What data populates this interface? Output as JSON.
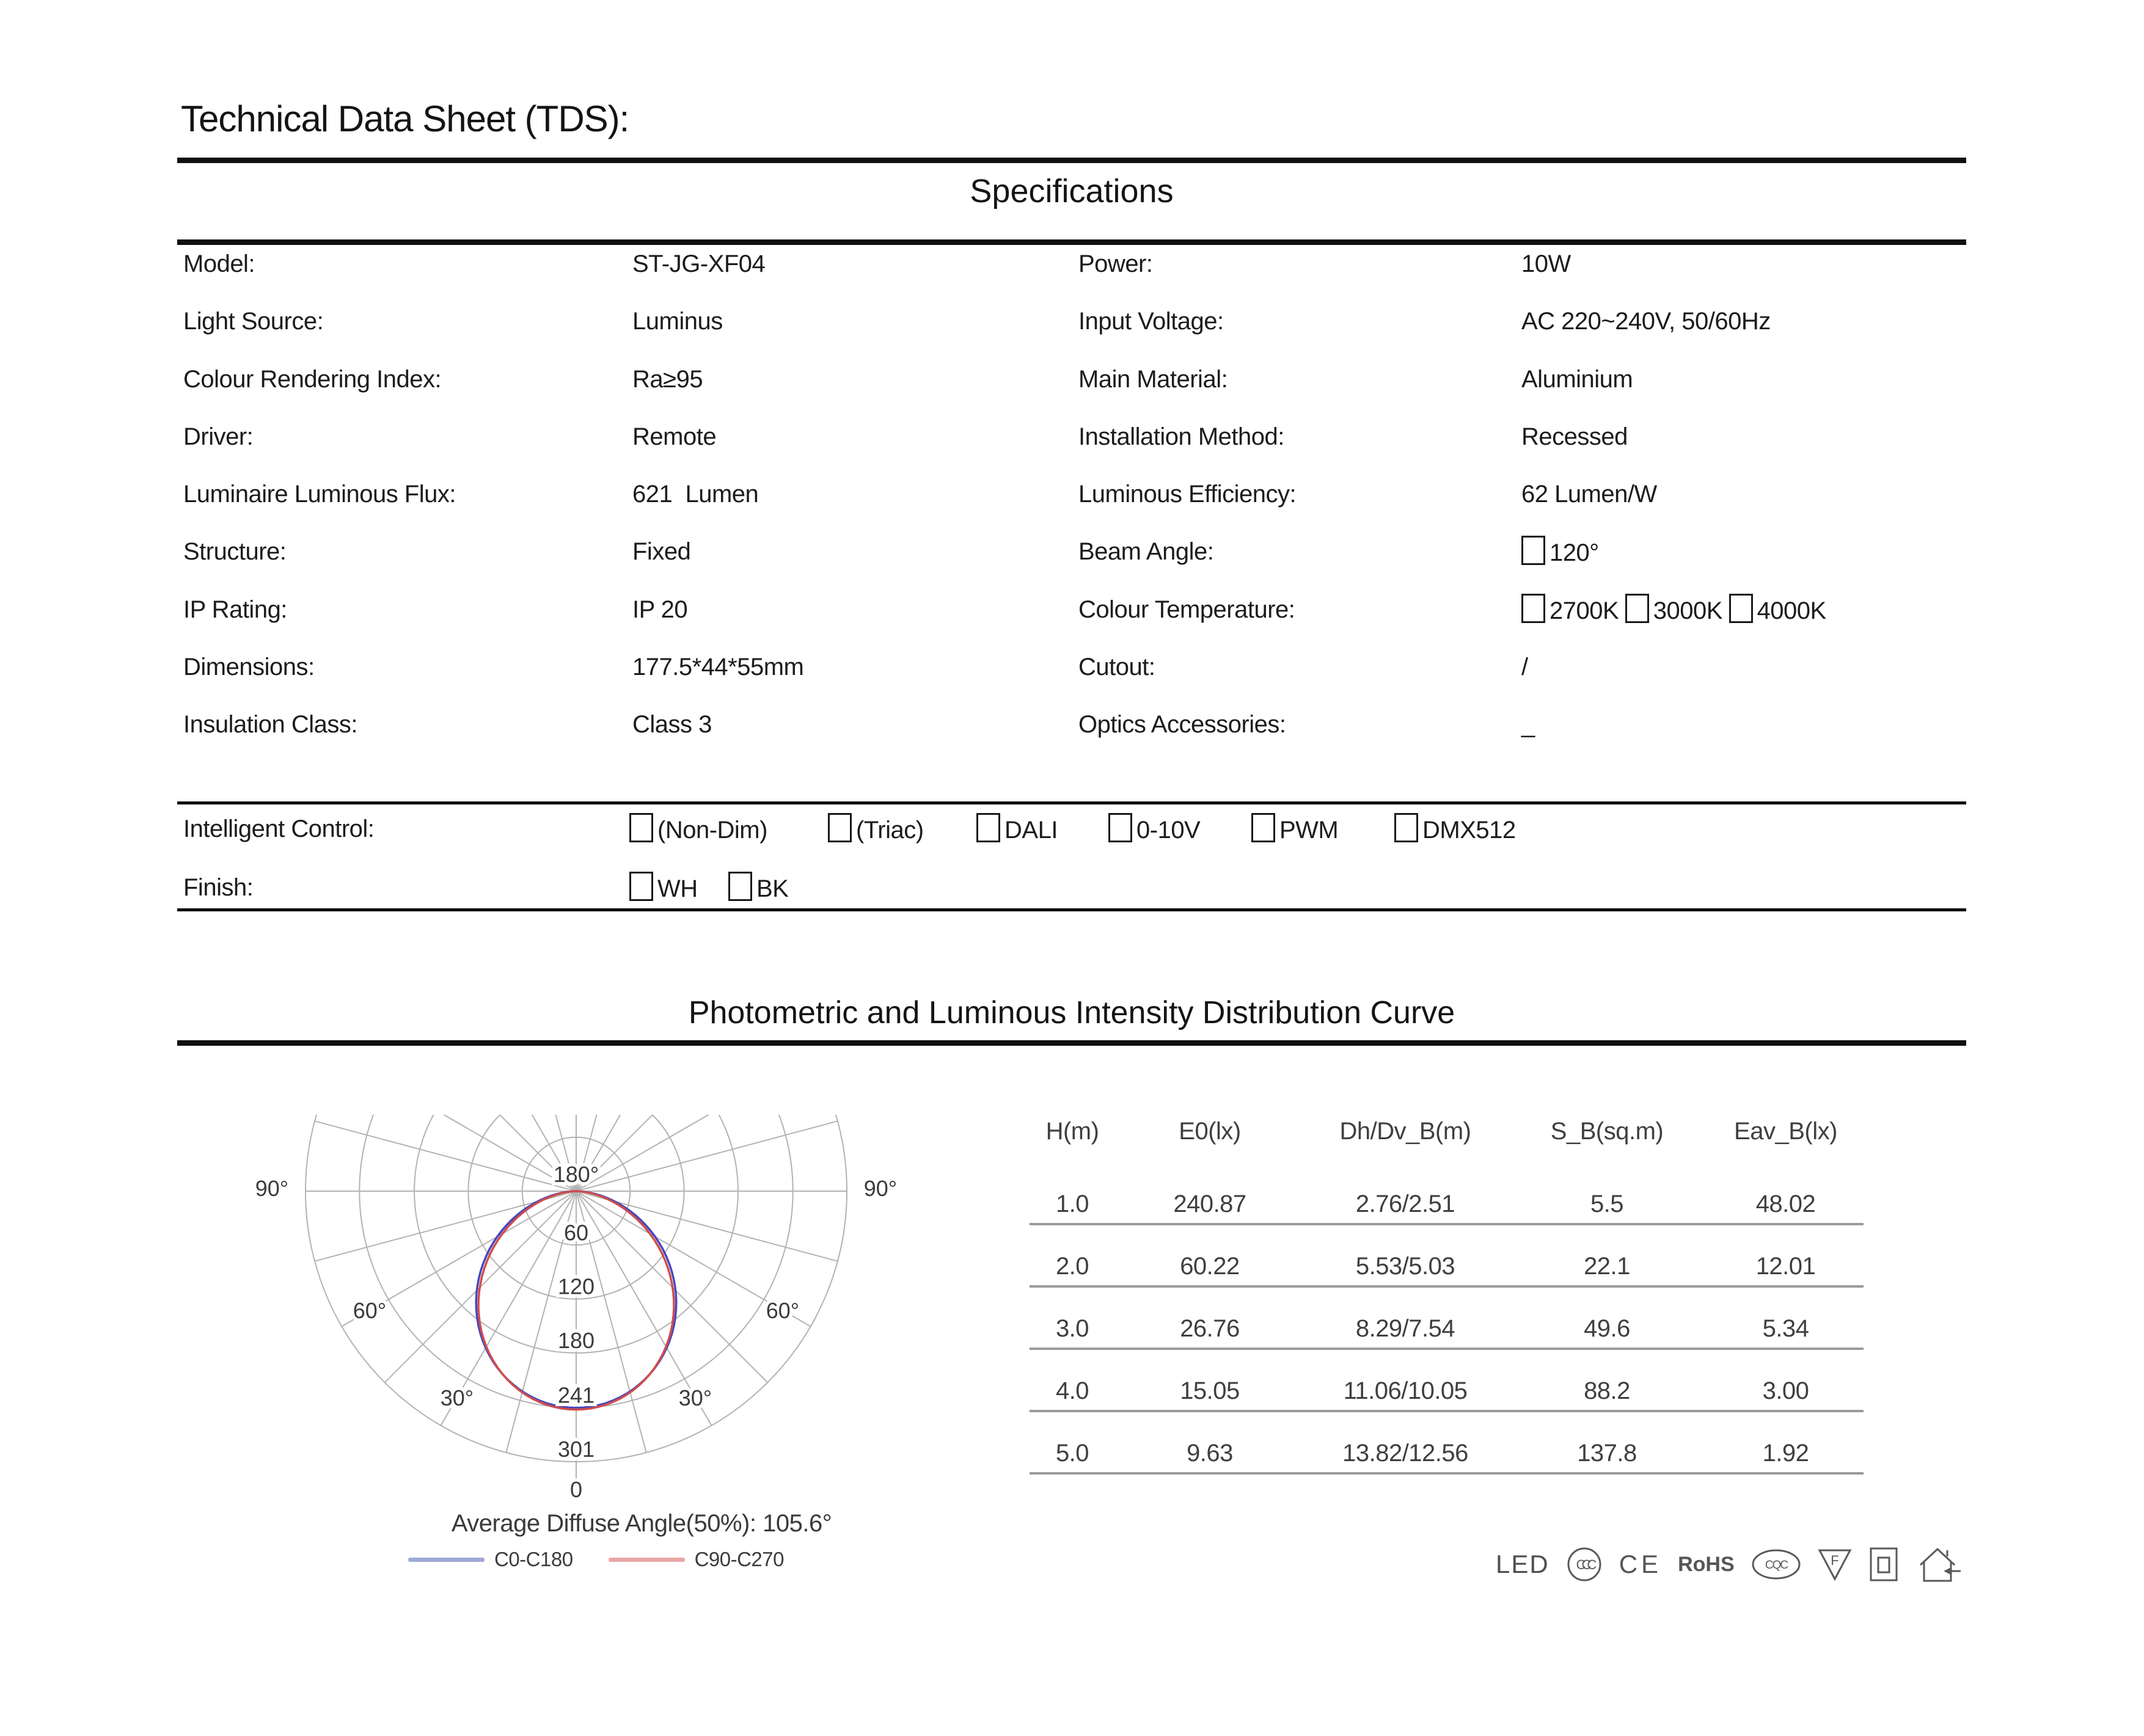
{
  "page": {
    "title": "Technical Data Sheet (TDS):"
  },
  "specifications": {
    "heading": "Specifications",
    "left": [
      {
        "label": "Model:",
        "value": "ST-JG-XF04"
      },
      {
        "label": "Light Source:",
        "value": "Luminus"
      },
      {
        "label": "Colour Rendering Index:",
        "value": "Ra≥95"
      },
      {
        "label": "Driver:",
        "value": "Remote"
      },
      {
        "label": "Luminaire Luminous Flux:",
        "value": "621  Lumen"
      },
      {
        "label": "Structure:",
        "value": "Fixed"
      },
      {
        "label": "IP Rating:",
        "value": "IP 20"
      },
      {
        "label": "Dimensions:",
        "value": "177.5*44*55mm"
      },
      {
        "label": "Insulation Class:",
        "value": "Class 3"
      }
    ],
    "right": [
      {
        "label": "Power:",
        "value": "10W"
      },
      {
        "label": "Input Voltage:",
        "value": "AC 220~240V, 50/60Hz"
      },
      {
        "label": "Main Material:",
        "value": "Aluminium"
      },
      {
        "label": "Installation Method:",
        "value": "Recessed"
      },
      {
        "label": "Luminous Efficiency:",
        "value": "62 Lumen/W"
      },
      {
        "label": "Beam Angle:",
        "value": "☐120°"
      },
      {
        "label": "Colour Temperature:",
        "value": "☐2700K ☐3000K ☐4000K"
      },
      {
        "label": "Cutout:",
        "value": "/"
      },
      {
        "label": "Optics Accessories:",
        "value": "_"
      }
    ]
  },
  "controls": {
    "intelligent_control_label": "Intelligent Control:",
    "intelligent_control_options": [
      "(Non-Dim)",
      "(Triac)",
      "DALI",
      "0-10V",
      "PWM",
      "DMX512"
    ],
    "finish_label": "Finish:",
    "finish_options": [
      "WH",
      "BK"
    ]
  },
  "photometric": {
    "heading": "Photometric and Luminous Intensity Distribution Curve"
  },
  "chart_data": {
    "type": "line",
    "subtype": "polar-photometric-intensity",
    "radial_axis": {
      "unit": "cd",
      "ticks": [
        60,
        120,
        180,
        241,
        301
      ],
      "max": 301
    },
    "angle_labels": {
      "top": "180°",
      "side_labels": [
        "90°",
        "60°",
        "30°"
      ],
      "bottom": "0"
    },
    "grid": {
      "spoke_step_deg": 15,
      "rings": 5,
      "color": "#b3b3b3"
    },
    "average_diffuse_angle_label": "Average Diffuse Angle(50%): 105.6°",
    "series": [
      {
        "name": "C0-C180",
        "color": "#4547c0",
        "legend_color": "#9fa9d6",
        "peak_cd": 241,
        "cos_exponent": 1.25,
        "points_deg_cd": [
          [
            -90,
            0
          ],
          [
            -80,
            27
          ],
          [
            -70,
            63
          ],
          [
            -60,
            101
          ],
          [
            -50,
            139
          ],
          [
            -40,
            173
          ],
          [
            -30,
            201
          ],
          [
            -20,
            223
          ],
          [
            -10,
            236
          ],
          [
            0,
            241
          ],
          [
            10,
            236
          ],
          [
            20,
            223
          ],
          [
            30,
            201
          ],
          [
            40,
            173
          ],
          [
            50,
            139
          ],
          [
            60,
            101
          ],
          [
            70,
            63
          ],
          [
            80,
            27
          ],
          [
            90,
            0
          ]
        ]
      },
      {
        "name": "C90-C270",
        "color": "#d04c4c",
        "legend_color": "#e9a6a6",
        "peak_cd": 243,
        "cos_exponent": 1.36,
        "points_deg_cd": [
          [
            -90,
            0
          ],
          [
            -80,
            22
          ],
          [
            -70,
            57
          ],
          [
            -60,
            95
          ],
          [
            -50,
            133
          ],
          [
            -40,
            169
          ],
          [
            -30,
            200
          ],
          [
            -20,
            223
          ],
          [
            -10,
            238
          ],
          [
            0,
            243
          ],
          [
            10,
            238
          ],
          [
            20,
            223
          ],
          [
            30,
            200
          ],
          [
            40,
            169
          ],
          [
            50,
            133
          ],
          [
            60,
            95
          ],
          [
            70,
            57
          ],
          [
            80,
            22
          ],
          [
            90,
            0
          ]
        ]
      }
    ]
  },
  "table": {
    "headers": [
      "H(m)",
      "E0(lx)",
      "Dh/Dv_B(m)",
      "S_B(sq.m)",
      "Eav_B(lx)"
    ],
    "rows": [
      [
        "1.0",
        "240.87",
        "2.76/2.51",
        "5.5",
        "48.02"
      ],
      [
        "2.0",
        "60.22",
        "5.53/5.03",
        "22.1",
        "12.01"
      ],
      [
        "3.0",
        "26.76",
        "8.29/7.54",
        "49.6",
        "5.34"
      ],
      [
        "4.0",
        "15.05",
        "11.06/10.05",
        "88.2",
        "3.00"
      ],
      [
        "5.0",
        "9.63",
        "13.82/12.56",
        "137.8",
        "1.92"
      ]
    ]
  },
  "certifications": {
    "led_label": "LED",
    "ccc_label": "CCC",
    "ce_label": "CE",
    "rohs_label": "RoHS",
    "cqc_label": "CQC",
    "f_label": "F"
  }
}
